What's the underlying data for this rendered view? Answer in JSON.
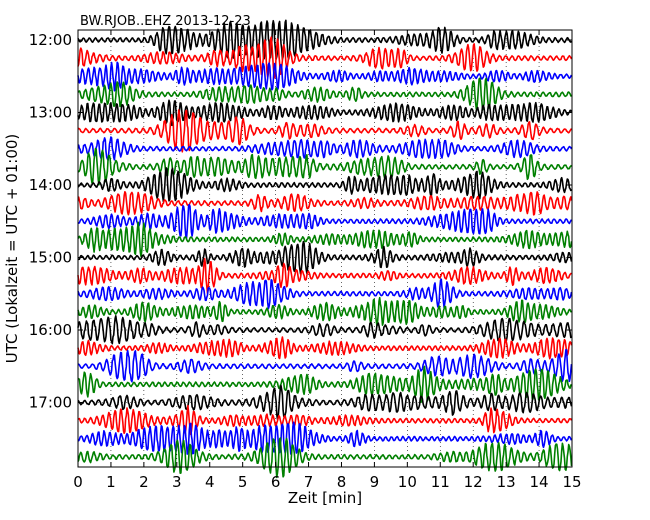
{
  "chart_data": {
    "type": "line",
    "title": "BW.RJOB..EHZ 2013-12-23",
    "xlabel": "Zeit  [min]",
    "ylabel": "UTC (Lokalzeit = UTC + 01:00)",
    "xlim": [
      0,
      15
    ],
    "x_ticks": [
      "0",
      "1",
      "2",
      "3",
      "4",
      "5",
      "6",
      "7",
      "8",
      "9",
      "10",
      "11",
      "12",
      "13",
      "14",
      "15"
    ],
    "y_ticks": [
      "12:00",
      "13:00",
      "14:00",
      "15:00",
      "16:00",
      "17:00"
    ],
    "grid": true,
    "trace_colors": [
      "#000000",
      "#ff0000",
      "#0000ff",
      "#008000"
    ],
    "trace_count": 24,
    "trace_interval_min": 15,
    "start_time": "12:00"
  }
}
